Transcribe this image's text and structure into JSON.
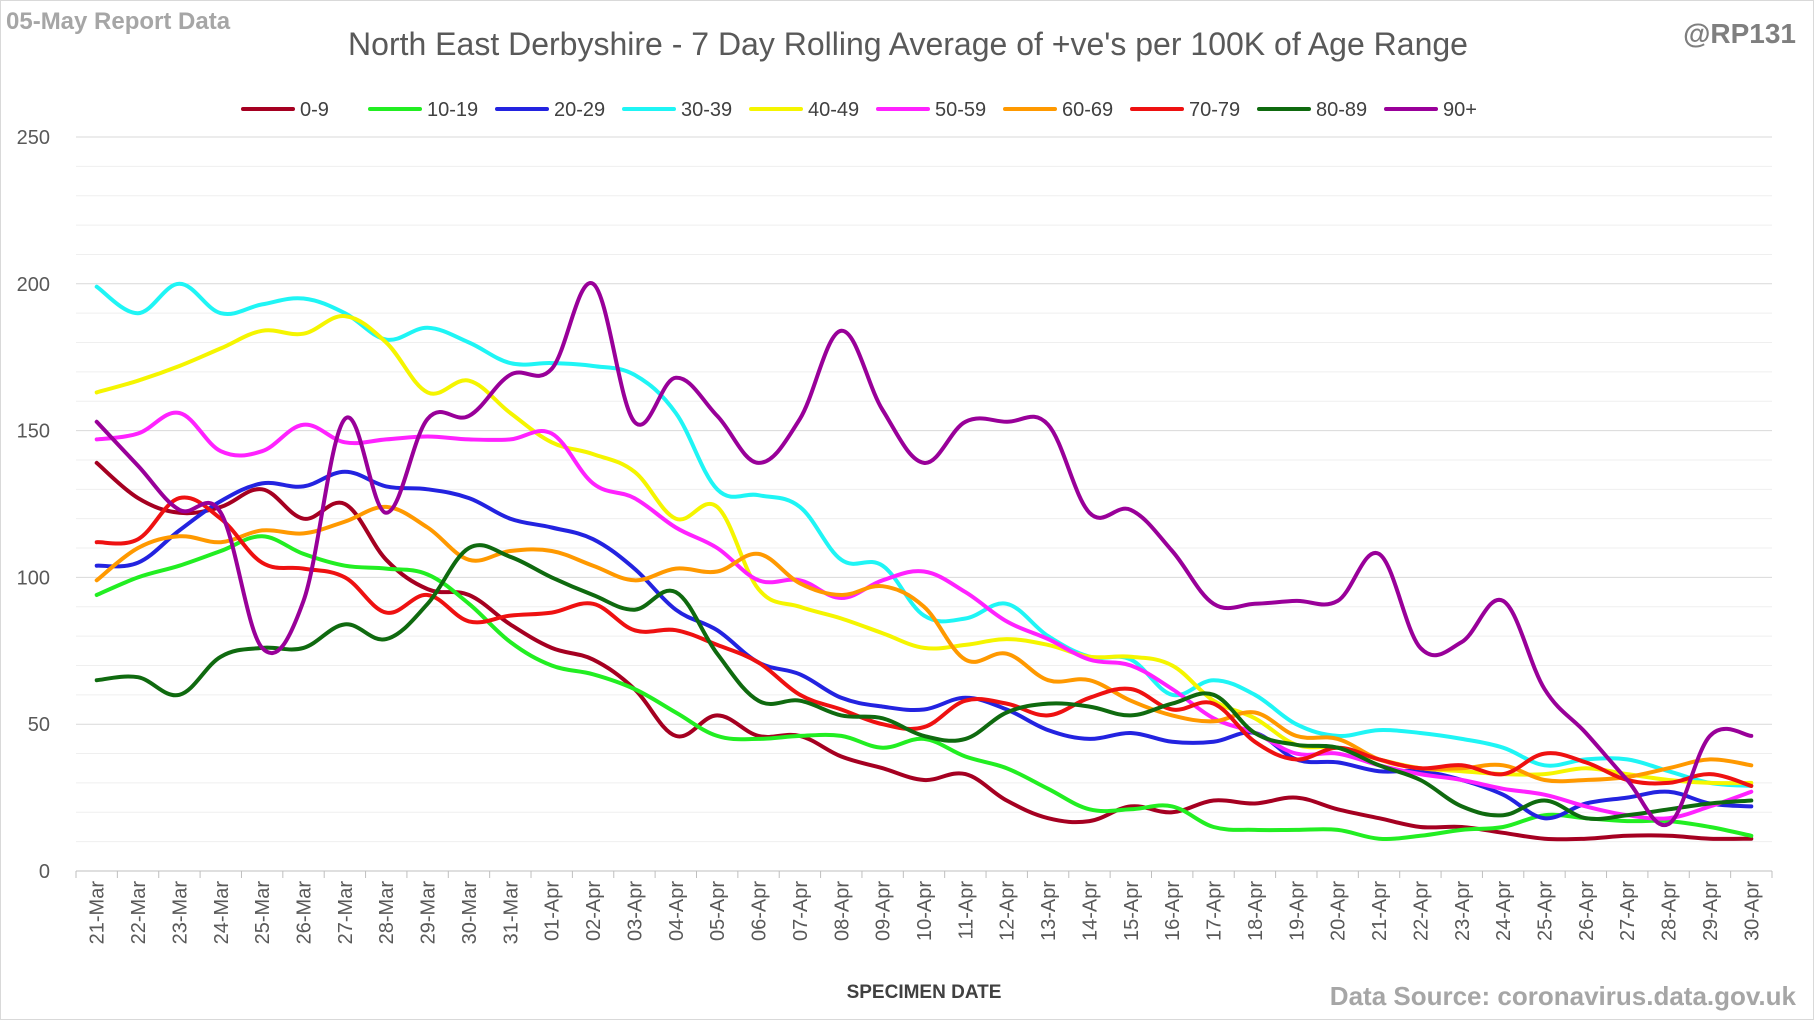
{
  "header": {
    "report_label": "05-May Report Data",
    "handle": "@RP131",
    "source": "Data Source: coronavirus.data.gov.uk"
  },
  "chart_data": {
    "type": "line",
    "title": "North East Derbyshire - 7 Day Rolling Average of +ve's per 100K of Age Range",
    "xlabel": "SPECIMEN DATE",
    "ylabel": "",
    "ylim": [
      0,
      250
    ],
    "yticks": [
      0,
      50,
      100,
      150,
      200,
      250
    ],
    "grid": true,
    "legend_position": "top",
    "categories": [
      "21-Mar",
      "22-Mar",
      "23-Mar",
      "24-Mar",
      "25-Mar",
      "26-Mar",
      "27-Mar",
      "28-Mar",
      "29-Mar",
      "30-Mar",
      "31-Mar",
      "01-Apr",
      "02-Apr",
      "03-Apr",
      "04-Apr",
      "05-Apr",
      "06-Apr",
      "07-Apr",
      "08-Apr",
      "09-Apr",
      "10-Apr",
      "11-Apr",
      "12-Apr",
      "13-Apr",
      "14-Apr",
      "15-Apr",
      "16-Apr",
      "17-Apr",
      "18-Apr",
      "19-Apr",
      "20-Apr",
      "21-Apr",
      "22-Apr",
      "23-Apr",
      "24-Apr",
      "25-Apr",
      "26-Apr",
      "27-Apr",
      "28-Apr",
      "29-Apr",
      "30-Apr"
    ],
    "series": [
      {
        "name": "0-9",
        "color": "#a50021",
        "values": [
          139,
          127,
          122,
          124,
          130,
          120,
          125,
          106,
          96,
          94,
          84,
          76,
          72,
          62,
          46,
          53,
          46,
          46,
          39,
          35,
          31,
          33,
          24,
          18,
          17,
          22,
          20,
          24,
          23,
          25,
          21,
          18,
          15,
          15,
          13,
          11,
          11,
          12,
          12,
          11,
          11
        ]
      },
      {
        "name": "10-19",
        "color": "#22ee22",
        "values": [
          94,
          100,
          104,
          109,
          114,
          108,
          104,
          103,
          101,
          91,
          78,
          70,
          67,
          62,
          54,
          46,
          45,
          46,
          46,
          42,
          45,
          39,
          35,
          28,
          21,
          21,
          22,
          15,
          14,
          14,
          14,
          11,
          12,
          14,
          15,
          19,
          18,
          17,
          17,
          15,
          12
        ]
      },
      {
        "name": "20-29",
        "color": "#2323e0",
        "values": [
          104,
          105,
          116,
          126,
          132,
          131,
          136,
          131,
          130,
          127,
          120,
          117,
          113,
          103,
          89,
          82,
          71,
          67,
          59,
          56,
          55,
          59,
          55,
          48,
          45,
          47,
          44,
          44,
          47,
          38,
          37,
          34,
          34,
          31,
          26,
          18,
          23,
          25,
          27,
          23,
          22
        ]
      },
      {
        "name": "30-39",
        "color": "#1ff5f5",
        "values": [
          199,
          190,
          200,
          190,
          193,
          195,
          190,
          181,
          185,
          180,
          173,
          173,
          172,
          169,
          156,
          130,
          128,
          124,
          106,
          104,
          87,
          86,
          91,
          80,
          73,
          72,
          60,
          65,
          60,
          50,
          46,
          48,
          47,
          45,
          42,
          36,
          38,
          38,
          34,
          30,
          29
        ]
      },
      {
        "name": "40-49",
        "color": "#f5f500",
        "values": [
          163,
          167,
          172,
          178,
          184,
          183,
          189,
          180,
          163,
          167,
          156,
          146,
          142,
          136,
          120,
          124,
          96,
          90,
          86,
          81,
          76,
          77,
          79,
          77,
          73,
          73,
          70,
          58,
          52,
          43,
          42,
          38,
          35,
          34,
          33,
          33,
          35,
          33,
          31,
          30,
          30
        ]
      },
      {
        "name": "50-59",
        "color": "#ff22ff",
        "values": [
          147,
          149,
          156,
          143,
          143,
          152,
          146,
          147,
          148,
          147,
          147,
          149,
          132,
          127,
          117,
          110,
          99,
          99,
          93,
          99,
          102,
          95,
          85,
          79,
          72,
          70,
          62,
          52,
          47,
          40,
          40,
          36,
          33,
          31,
          28,
          26,
          22,
          19,
          18,
          22,
          27
        ]
      },
      {
        "name": "60-69",
        "color": "#ff9900",
        "values": [
          99,
          110,
          114,
          112,
          116,
          115,
          119,
          124,
          117,
          106,
          109,
          109,
          104,
          99,
          103,
          102,
          108,
          98,
          94,
          97,
          90,
          72,
          74,
          65,
          65,
          58,
          53,
          51,
          54,
          46,
          45,
          38,
          35,
          35,
          36,
          31,
          31,
          32,
          35,
          38,
          36
        ]
      },
      {
        "name": "70-79",
        "color": "#ee1111",
        "values": [
          112,
          113,
          127,
          120,
          105,
          103,
          100,
          88,
          94,
          85,
          87,
          88,
          91,
          82,
          82,
          77,
          71,
          60,
          55,
          50,
          49,
          58,
          57,
          53,
          59,
          62,
          55,
          57,
          44,
          38,
          42,
          38,
          35,
          36,
          33,
          40,
          37,
          31,
          30,
          33,
          29
        ]
      },
      {
        "name": "80-89",
        "color": "#0f6a0f",
        "values": [
          65,
          66,
          60,
          73,
          76,
          76,
          84,
          79,
          91,
          110,
          107,
          100,
          94,
          89,
          95,
          74,
          58,
          58,
          53,
          52,
          46,
          45,
          54,
          57,
          56,
          53,
          57,
          60,
          47,
          43,
          42,
          36,
          31,
          22,
          19,
          24,
          18,
          19,
          21,
          23,
          24
        ]
      },
      {
        "name": "90+",
        "color": "#990099",
        "values": [
          153,
          138,
          123,
          122,
          76,
          92,
          154,
          122,
          154,
          155,
          169,
          171,
          200,
          153,
          168,
          155,
          139,
          154,
          184,
          157,
          139,
          153,
          153,
          152,
          122,
          123,
          109,
          91,
          91,
          92,
          92,
          108,
          76,
          78,
          92,
          62,
          47,
          31,
          16,
          46,
          46
        ]
      }
    ]
  }
}
